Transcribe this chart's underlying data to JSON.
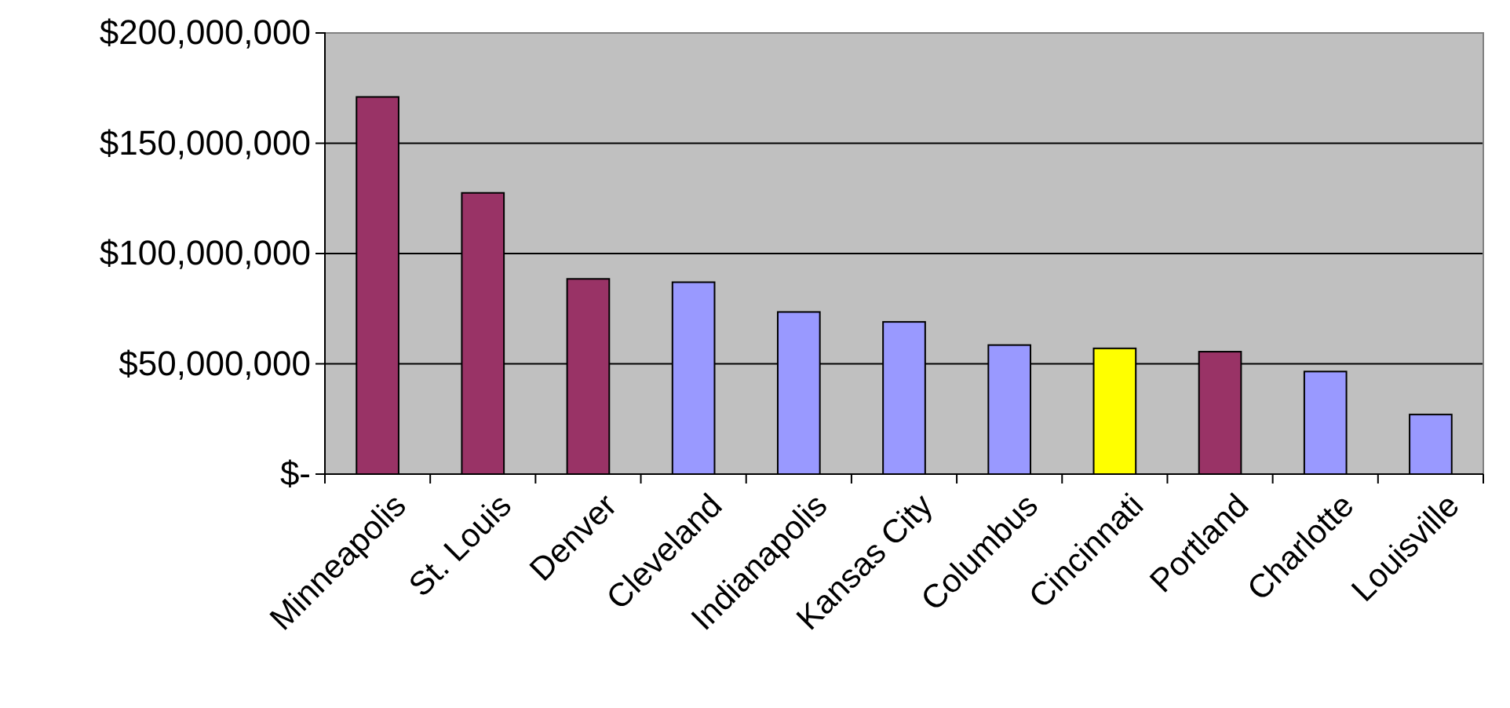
{
  "chart_data": {
    "type": "bar",
    "categories": [
      "Minneapolis",
      "St. Louis",
      "Denver",
      "Cleveland",
      "Indianapolis",
      "Kansas City",
      "Columbus",
      "Cincinnati",
      "Portland",
      "Charlotte",
      "Louisville"
    ],
    "values": [
      171000000,
      127500000,
      88500000,
      87000000,
      73500000,
      69000000,
      58500000,
      57000000,
      55500000,
      46500000,
      27000000
    ],
    "colors": [
      "#993366",
      "#993366",
      "#993366",
      "#9999ff",
      "#9999ff",
      "#9999ff",
      "#9999ff",
      "#ffff00",
      "#993366",
      "#9999ff",
      "#9999ff"
    ],
    "ylim": [
      0,
      200000000
    ],
    "yticks": [
      {
        "value": 0,
        "label": "$-"
      },
      {
        "value": 50000000,
        "label": "$50,000,000"
      },
      {
        "value": 100000000,
        "label": "$100,000,000"
      },
      {
        "value": 150000000,
        "label": "$150,000,000"
      },
      {
        "value": 200000000,
        "label": "$200,000,000"
      }
    ],
    "grid": "y"
  }
}
